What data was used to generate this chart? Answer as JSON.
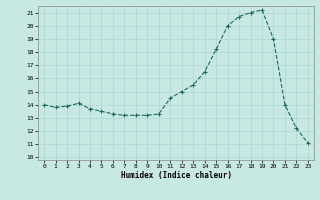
{
  "x": [
    0,
    1,
    2,
    3,
    4,
    5,
    6,
    7,
    8,
    9,
    10,
    11,
    12,
    13,
    14,
    15,
    16,
    17,
    18,
    19,
    20,
    21,
    22,
    23
  ],
  "y": [
    14.0,
    13.8,
    13.9,
    14.1,
    13.7,
    13.5,
    13.3,
    13.2,
    13.2,
    13.2,
    13.3,
    14.5,
    15.0,
    15.5,
    16.5,
    18.2,
    20.0,
    20.7,
    21.0,
    21.2,
    19.0,
    14.0,
    12.2,
    11.1
  ],
  "line_color": "#1a6b5a",
  "marker": "+",
  "background_color": "#c8e8e4",
  "grid_color": "#a8d8d4",
  "xlabel": "Humidex (Indice chaleur)",
  "ylim": [
    9.8,
    21.5
  ],
  "xlim": [
    -0.5,
    23.5
  ],
  "yticks": [
    10,
    11,
    12,
    13,
    14,
    15,
    16,
    17,
    18,
    19,
    20,
    21
  ],
  "xticks": [
    0,
    1,
    2,
    3,
    4,
    5,
    6,
    7,
    8,
    9,
    10,
    11,
    12,
    13,
    14,
    15,
    16,
    17,
    18,
    19,
    20,
    21,
    22,
    23
  ]
}
